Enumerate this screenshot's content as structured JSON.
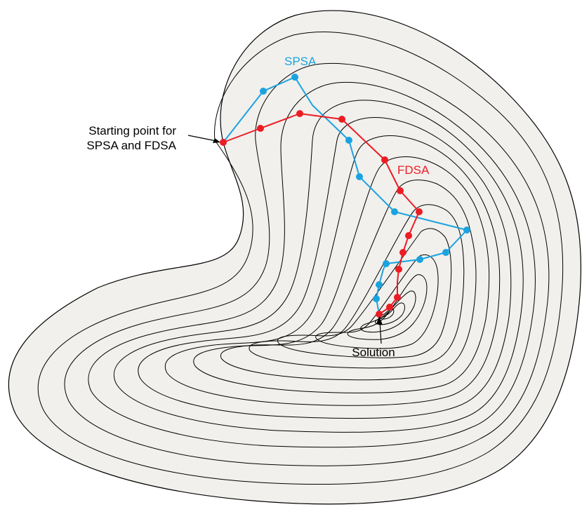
{
  "labels": {
    "spsa": "SPSA",
    "fdsa": "FDSA",
    "start_line1": "Starting point for",
    "start_line2": "SPSA and FDSA",
    "solution": "Solution"
  },
  "colors": {
    "spsa": "#1ba3e0",
    "fdsa": "#ec1c24",
    "surface": "#f1f0ec",
    "contour": "#000000"
  }
}
